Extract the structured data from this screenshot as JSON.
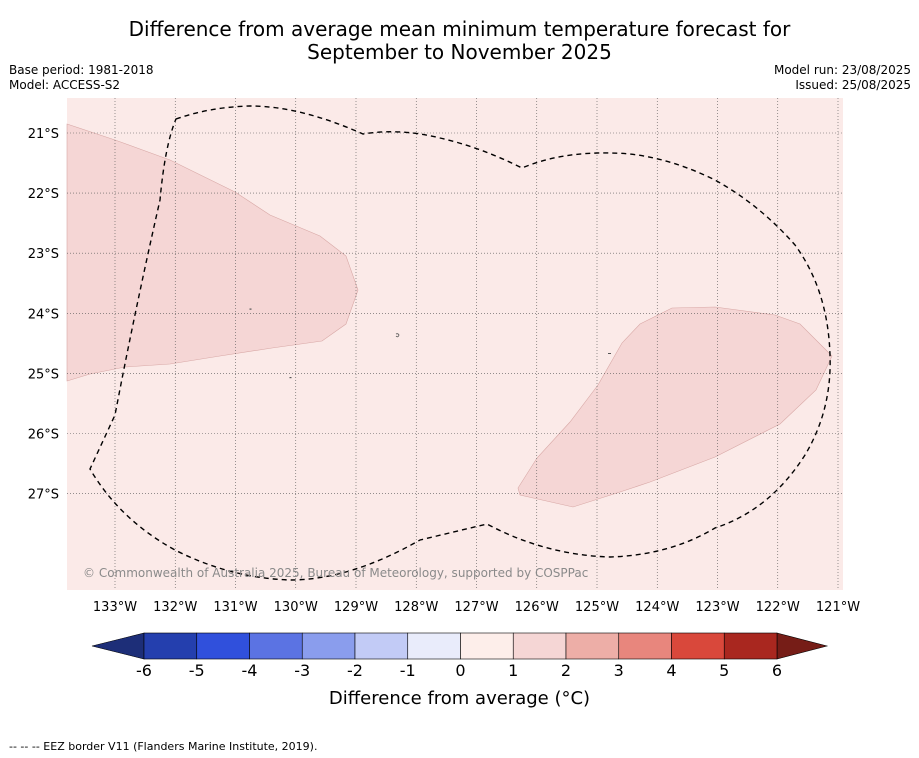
{
  "title_line1": "Difference from average mean minimum temperature forecast for",
  "title_line2": "September to November 2025",
  "meta": {
    "base_period": "Base period: 1981-2018",
    "model": "Model: ACCESS-S2",
    "model_run": "Model run: 23/08/2025",
    "issued": "Issued: 25/08/2025"
  },
  "map": {
    "lat_labels": [
      "21°S",
      "22°S",
      "23°S",
      "24°S",
      "25°S",
      "26°S",
      "27°S"
    ],
    "lon_labels": [
      "133°W",
      "132°W",
      "131°W",
      "130°W",
      "129°W",
      "128°W",
      "127°W",
      "126°W",
      "125°W",
      "124°W",
      "123°W",
      "122°W",
      "121°W"
    ],
    "copyright": "© Commonwealth of Australia 2025, Bureau of Meteorology, supported by COSPPac",
    "background_category": "0 to 1",
    "anomaly_regions": [
      "1 to 2",
      "1 to 2"
    ],
    "colors": {
      "cat_0_1": "#fbeae8",
      "cat_1_2": "#f5d6d5"
    }
  },
  "colorbar": {
    "ticks": [
      "-6",
      "-5",
      "-4",
      "-3",
      "-2",
      "-1",
      "0",
      "1",
      "2",
      "3",
      "4",
      "5",
      "6"
    ],
    "colors": [
      "#243fae",
      "#3050dc",
      "#5b73e3",
      "#8a9ded",
      "#c2cbf6",
      "#e9ecfb",
      "#fdeeea",
      "#f5d6d5",
      "#edaea7",
      "#e8867d",
      "#d9483b",
      "#a9271f"
    ],
    "under_color": "#1d2e78",
    "over_color": "#761d17",
    "label": "Difference from average (°C)"
  },
  "footer": "-- -- -- EEZ border V11 (Flanders Marine Institute, 2019)."
}
